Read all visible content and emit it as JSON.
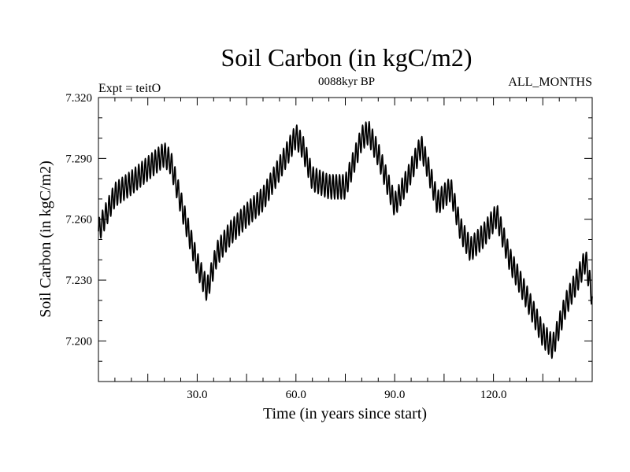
{
  "chart_data": {
    "type": "line",
    "title": "Soil Carbon (in kgC/m2)",
    "subtitle": "0088kyr BP",
    "left_label": "Expt = teitO",
    "right_label": "ALL_MONTHS",
    "xlabel": "Time (in years since start)",
    "ylabel": "Soil Carbon (in kgC/m2)",
    "xlim": [
      0,
      150
    ],
    "ylim": [
      7.18,
      7.32
    ],
    "x_ticks": [
      30,
      60,
      90,
      120
    ],
    "x_tick_labels": [
      "30.0",
      "60.0",
      "90.0",
      "120.0"
    ],
    "y_ticks": [
      7.2,
      7.23,
      7.26,
      7.29,
      7.32
    ],
    "y_tick_labels": [
      "7.200",
      "7.230",
      "7.260",
      "7.290",
      "7.320"
    ],
    "seasonal_amplitude": 0.006,
    "series": [
      {
        "name": "Soil Carbon",
        "trend_x": [
          0,
          5,
          10,
          15,
          20,
          22,
          26,
          30,
          33,
          36,
          40,
          45,
          50,
          55,
          60,
          62,
          65,
          70,
          75,
          80,
          82,
          85,
          90,
          94,
          98,
          100,
          103,
          107,
          110,
          113,
          117,
          121,
          125,
          130,
          135,
          138,
          142,
          146,
          148,
          150
        ],
        "trend_y": [
          7.254,
          7.272,
          7.278,
          7.285,
          7.292,
          7.288,
          7.262,
          7.238,
          7.225,
          7.243,
          7.253,
          7.262,
          7.27,
          7.285,
          7.301,
          7.296,
          7.28,
          7.276,
          7.276,
          7.3,
          7.303,
          7.292,
          7.267,
          7.28,
          7.296,
          7.286,
          7.268,
          7.275,
          7.255,
          7.245,
          7.252,
          7.262,
          7.24,
          7.222,
          7.203,
          7.197,
          7.218,
          7.232,
          7.24,
          7.222
        ]
      }
    ]
  }
}
